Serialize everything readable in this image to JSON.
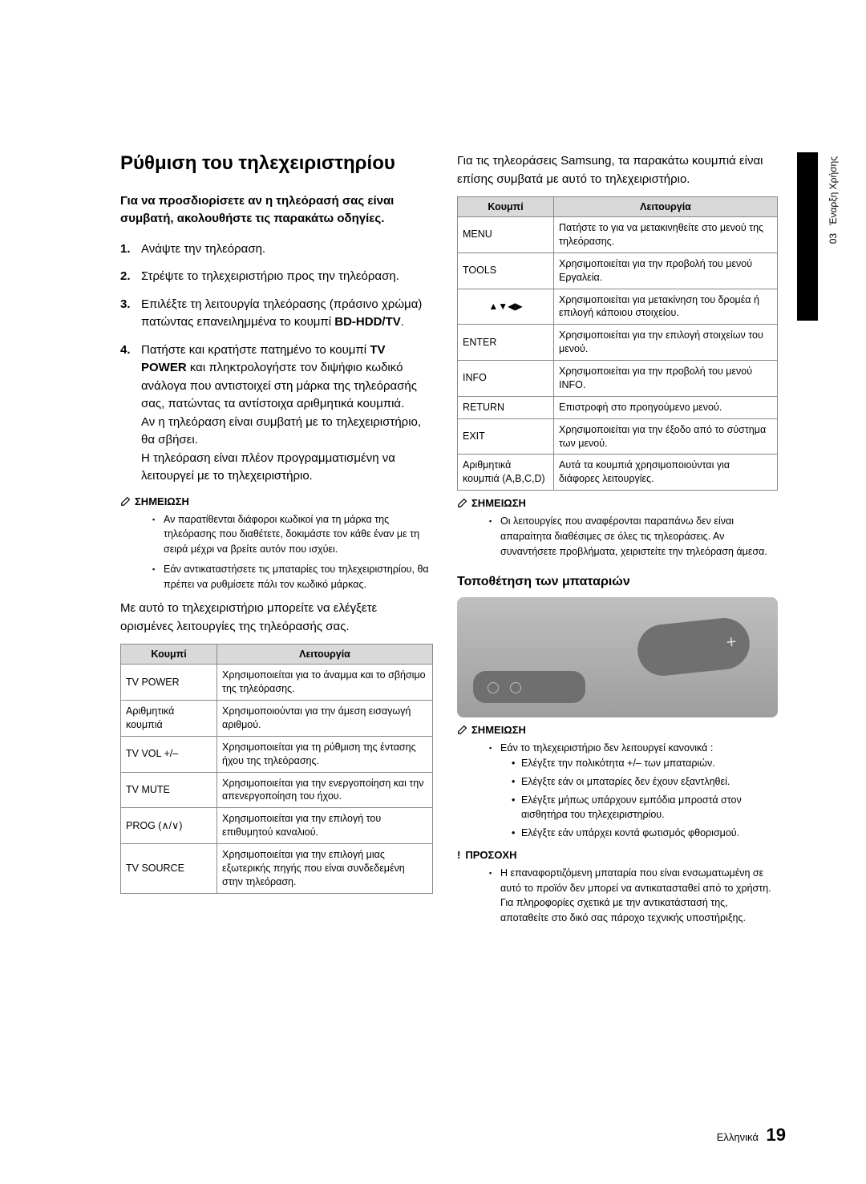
{
  "sidebar": {
    "chapter_no": "03",
    "chapter_title": "Έναρξη Χρήσης"
  },
  "heading": "Ρύθμιση του τηλεχειριστηρίου",
  "instruction_head": "Για να προσδιορίσετε αν η τηλεόρασή σας είναι συμβατή, ακολουθήστε τις παρακάτω οδηγίες.",
  "steps": {
    "s1": "Ανάψτε την τηλεόραση.",
    "s2": "Στρέψτε το τηλεχειριστήριο προς την τηλεόραση.",
    "s3a": "Επιλέξτε τη λειτουργία τηλεόρασης (πράσινο χρώμα) πατώντας επανειλημμένα το κουμπί ",
    "s3b": "BD-HDD/TV",
    "s3c": ".",
    "s4a": "Πατήστε και κρατήστε πατημένο το κουμπί ",
    "s4b": "TV POWER",
    "s4c": " και πληκτρολογήστε τον διψήφιο κωδικό ανάλογα που αντιστοιχεί στη μάρκα της τηλεόρασής σας, πατώντας τα αντίστοιχα αριθμητικά κουμπιά.",
    "s4d": "Αν η τηλεόραση είναι συμβατή με το τηλεχειριστήριο, θα σβήσει.",
    "s4e": "Η τηλεόραση είναι πλέον προγραμματισμένη να λειτουργεί με το τηλεχειριστήριο."
  },
  "note_label": "ΣΗΜΕΙΩΣΗ",
  "notes1": {
    "n1": "Αν παρατίθενται διάφοροι κωδικοί για τη μάρκα της τηλεόρασης που διαθέτετε, δοκιμάστε τον κάθε έναν με τη σειρά μέχρι να βρείτε αυτόν που ισχύει.",
    "n2": "Εάν αντικαταστήσετε τις μπαταρίες του τηλεχειριστηρίου, θα πρέπει να ρυθμίσετε πάλι τον κωδικό μάρκας."
  },
  "para1": "Με αυτό το τηλεχειριστήριο μπορείτε να ελέγξετε ορισμένες λειτουργίες της τηλεόρασής σας.",
  "table1": {
    "h1": "Κουμπί",
    "h2": "Λειτουργία",
    "rows": [
      [
        "TV POWER",
        "Χρησιμοποιείται για το άναμμα και το σβήσιμο της τηλεόρασης."
      ],
      [
        "Αριθμητικά κουμπιά",
        "Χρησιμοποιούνται για την άμεση εισαγωγή αριθμού."
      ],
      [
        "TV VOL +/–",
        "Χρησιμοποιείται για τη ρύθμιση της έντασης ήχου της τηλεόρασης."
      ],
      [
        "TV MUTE",
        "Χρησιμοποιείται για την ενεργοποίηση και την απενεργοποίηση του ήχου."
      ],
      [
        "PROG (∧/∨)",
        "Χρησιμοποιείται για την επιλογή του επιθυμητού καναλιού."
      ],
      [
        "TV SOURCE",
        "Χρησιμοποιείται για την επιλογή μιας εξωτερικής πηγής που είναι συνδεδεμένη στην τηλεόραση."
      ]
    ]
  },
  "para2": "Για τις τηλεοράσεις Samsung, τα παρακάτω κουμπιά είναι επίσης συμβατά με αυτό το τηλεχειριστήριο.",
  "table2": {
    "h1": "Κουμπί",
    "h2": "Λειτουργία",
    "rows": [
      [
        "MENU",
        "Πατήστε το για να μετακινηθείτε στο μενού της τηλεόρασης."
      ],
      [
        "TOOLS",
        "Χρησιμοποιείται για την προβολή του μενού Εργαλεία."
      ],
      [
        "▲▼◀▶",
        "Χρησιμοποιείται για μετακίνηση του δρομέα ή επιλογή κάποιου στοιχείου."
      ],
      [
        "ENTER",
        "Χρησιμοποιείται για την επιλογή στοιχείων του μενού."
      ],
      [
        "INFO",
        "Χρησιμοποιείται για την προβολή του μενού INFO."
      ],
      [
        "RETURN",
        "Επιστροφή στο προηγούμενο μενού."
      ],
      [
        "EXIT",
        "Χρησιμοποιείται για την έξοδο από το σύστημα των μενού."
      ],
      [
        "Αριθμητικά κουμπιά (A,B,C,D)",
        "Αυτά τα κουμπιά χρησιμοποιούνται για διάφορες λειτουργίες."
      ]
    ]
  },
  "notes2": {
    "n1": "Οι λειτουργίες που αναφέρονται παραπάνω δεν είναι απαραίτητα διαθέσιμες σε όλες τις τηλεοράσεις. Αν συναντήσετε προβλήματα, χειριστείτε την τηλεόραση άμεσα."
  },
  "battery_head": "Τοποθέτηση των μπαταριών",
  "notes3": {
    "n1": "Εάν το τηλεχειριστήριο δεν λειτουργεί κανονικά :",
    "b1": "Ελέγξτε την πολικότητα +/– των μπαταριών.",
    "b2": "Ελέγξτε εάν οι μπαταρίες δεν έχουν εξαντληθεί.",
    "b3": "Ελέγξτε μήπως υπάρχουν εμπόδια μπροστά στον αισθητήρα του τηλεχειριστηρίου.",
    "b4": "Ελέγξτε εάν υπάρχει κοντά φωτισμός φθορισμού."
  },
  "warn_label": "ΠΡΟΣΟΧΗ",
  "warn_text": "Η επαναφορτιζόμενη μπαταρία που είναι ενσωματωμένη σε αυτό το προϊόν δεν μπορεί να αντικατασταθεί από το χρήστη. Για πληροφορίες σχετικά με την αντικατάστασή της, αποταθείτε στο δικό σας πάροχο τεχνικής υποστήριξης.",
  "footer": {
    "lang": "Ελληνικά",
    "page": "19"
  }
}
